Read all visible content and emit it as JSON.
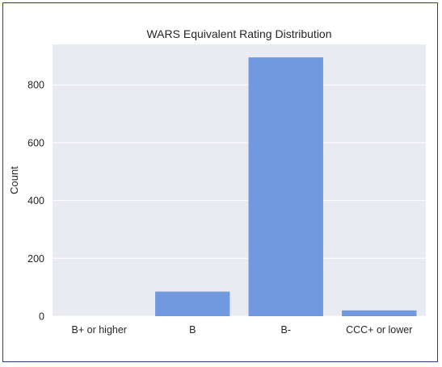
{
  "chart_data": {
    "type": "bar",
    "title": "WARS Equivalent Rating Distribution",
    "xlabel": "",
    "ylabel": "Count",
    "categories": [
      "B+ or higher",
      "B",
      "B-",
      "CCC+ or lower"
    ],
    "values": [
      0,
      85,
      895,
      20
    ],
    "ylim": [
      0,
      940
    ],
    "yticks": [
      0,
      200,
      400,
      600,
      800
    ],
    "grid": true,
    "colors": {
      "bar": "#7199e0",
      "plot_background": "#eaeaf2",
      "grid": "#ffffff",
      "frame_border": "#2e3a8c"
    }
  }
}
